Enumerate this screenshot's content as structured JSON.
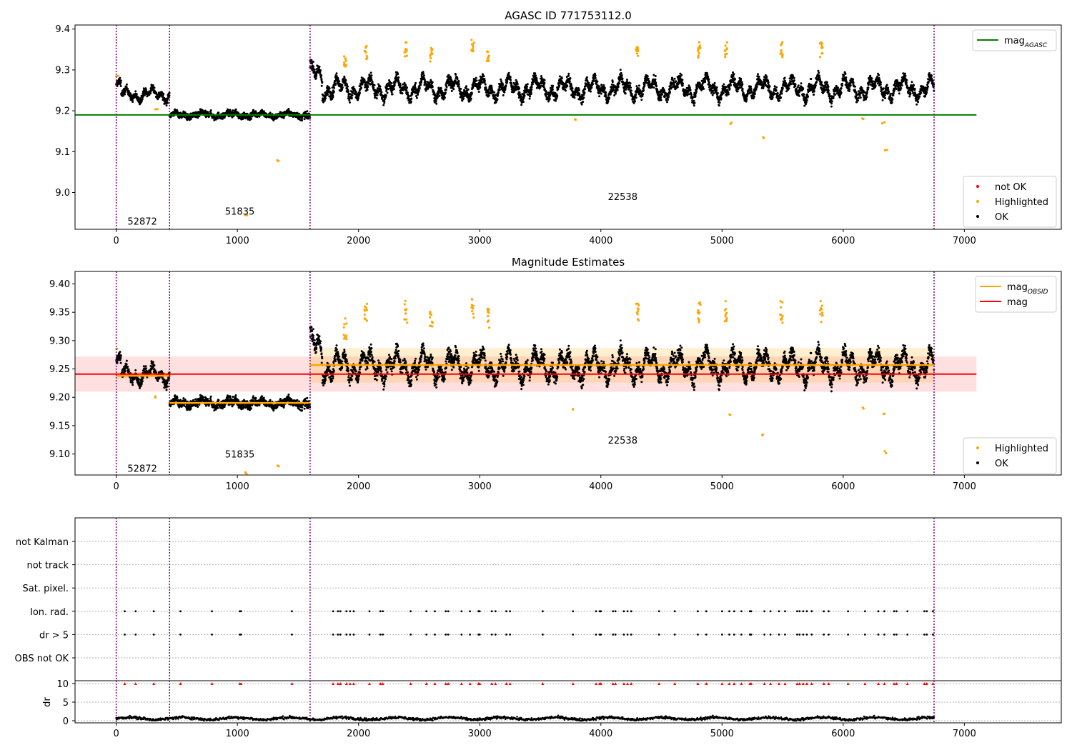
{
  "chart_data": [
    {
      "type": "scatter",
      "title": "AGASC ID 771753112.0",
      "xlim": [
        -340,
        7800
      ],
      "ylim": [
        8.91,
        9.41
      ],
      "xticks": [
        0,
        1000,
        2000,
        3000,
        4000,
        5000,
        6000,
        7000
      ],
      "yticks": [
        9.0,
        9.1,
        9.2,
        9.3,
        9.4
      ],
      "ytick_labels": [
        "9.0",
        "9.1",
        "9.2",
        "9.3",
        "9.4"
      ],
      "obsid_boundaries": [
        0,
        440,
        1600,
        6750
      ],
      "obsid_labels": [
        {
          "text": "52872",
          "x": 215,
          "y": 8.93
        },
        {
          "text": "51835",
          "x": 1020,
          "y": 8.955
        },
        {
          "text": "22538",
          "x": 4180,
          "y": 8.99
        }
      ],
      "mag_agasc": {
        "value": 9.19,
        "x": [
          -340,
          7100
        ],
        "color": "#008000"
      },
      "segments": [
        {
          "x": [
            0,
            440
          ],
          "base": 9.24,
          "amp": 0.015,
          "noise": 0.008
        },
        {
          "x": [
            440,
            1600
          ],
          "base": 9.19,
          "amp": 0.006,
          "noise": 0.007
        },
        {
          "x": [
            1600,
            6750
          ],
          "base": 9.255,
          "amp": 0.025,
          "noise": 0.012
        }
      ],
      "highlighted_points": [
        [
          5,
          9.285
        ],
        [
          330,
          9.205
        ],
        [
          1340,
          9.078
        ],
        [
          1070,
          8.945
        ],
        [
          1890,
          9.32
        ],
        [
          2060,
          9.345
        ],
        [
          2390,
          9.35
        ],
        [
          2600,
          9.34
        ],
        [
          2940,
          9.355
        ],
        [
          3070,
          9.34
        ],
        [
          3780,
          9.18
        ],
        [
          4300,
          9.35
        ],
        [
          4810,
          9.35
        ],
        [
          5030,
          9.35
        ],
        [
          5070,
          9.17
        ],
        [
          5340,
          9.135
        ],
        [
          5490,
          9.35
        ],
        [
          5820,
          9.35
        ],
        [
          6160,
          9.18
        ],
        [
          6330,
          9.17
        ],
        [
          6350,
          9.103
        ]
      ],
      "legend_upper": [
        {
          "label": "mag",
          "sub": "AGASC",
          "color": "#008000"
        }
      ],
      "legend_lower": [
        {
          "label": "not OK",
          "color": "#ff0000"
        },
        {
          "label": "Highlighted",
          "color": "#ffa500"
        },
        {
          "label": "OK",
          "color": "#000000"
        }
      ]
    },
    {
      "type": "scatter",
      "title": "Magnitude Estimates",
      "xlim": [
        -340,
        7800
      ],
      "ylim": [
        9.063,
        9.422
      ],
      "xticks": [
        0,
        1000,
        2000,
        3000,
        4000,
        5000,
        6000,
        7000
      ],
      "yticks": [
        9.1,
        9.15,
        9.2,
        9.25,
        9.3,
        9.35,
        9.4
      ],
      "ytick_labels": [
        "9.10",
        "9.15",
        "9.20",
        "9.25",
        "9.30",
        "9.35",
        "9.40"
      ],
      "obsid_boundaries": [
        0,
        440,
        1600,
        6750
      ],
      "obsid_labels": [
        {
          "text": "52872",
          "x": 215,
          "y": 9.075
        },
        {
          "text": "51835",
          "x": 1020,
          "y": 9.1
        },
        {
          "text": "22538",
          "x": 4180,
          "y": 9.125
        }
      ],
      "mag": {
        "value": 9.241,
        "band": [
          9.21,
          9.272
        ],
        "x": [
          -340,
          7100
        ],
        "color": "#ff0000"
      },
      "mag_obsid": [
        {
          "x": [
            0,
            440
          ],
          "value": 9.238,
          "band": [
            9.232,
            9.244
          ]
        },
        {
          "x": [
            440,
            1600
          ],
          "value": 9.19,
          "band": [
            9.185,
            9.195
          ]
        },
        {
          "x": [
            1600,
            6750
          ],
          "value": 9.257,
          "band": [
            9.226,
            9.287
          ]
        }
      ],
      "highlighted_points": [
        [
          5,
          9.285
        ],
        [
          330,
          9.2
        ],
        [
          1340,
          9.078
        ],
        [
          1070,
          9.066
        ],
        [
          1890,
          9.32
        ],
        [
          2060,
          9.345
        ],
        [
          2390,
          9.35
        ],
        [
          2600,
          9.34
        ],
        [
          2940,
          9.355
        ],
        [
          3070,
          9.34
        ],
        [
          3780,
          9.18
        ],
        [
          4300,
          9.35
        ],
        [
          4810,
          9.35
        ],
        [
          5030,
          9.35
        ],
        [
          5070,
          9.17
        ],
        [
          5340,
          9.135
        ],
        [
          5490,
          9.35
        ],
        [
          5820,
          9.35
        ],
        [
          6160,
          9.18
        ],
        [
          6330,
          9.17
        ],
        [
          6350,
          9.103
        ]
      ],
      "legend_upper": [
        {
          "label": "mag",
          "sub": "OBSID",
          "color": "#ffa500"
        },
        {
          "label": "mag",
          "sub": "",
          "color": "#ff0000"
        }
      ],
      "legend_lower": [
        {
          "label": "Highlighted",
          "color": "#ffa500"
        },
        {
          "label": "OK",
          "color": "#000000"
        }
      ]
    },
    {
      "type": "scatter",
      "title": "",
      "xlim": [
        -340,
        7800
      ],
      "xticks": [
        0,
        1000,
        2000,
        3000,
        4000,
        5000,
        6000,
        7000
      ],
      "obsid_boundaries": [
        0,
        440,
        1600,
        6750
      ],
      "flag_rows": [
        "not Kalman",
        "not track",
        "Sat. pixel.",
        "Ion. rad.",
        "dr > 5",
        "OBS not OK"
      ],
      "flag_times": [
        70,
        160,
        310,
        530,
        790,
        1020,
        1030,
        1450,
        1790,
        1830,
        1850,
        1900,
        1930,
        1960,
        2090,
        2180,
        2200,
        2430,
        2560,
        2630,
        2720,
        2740,
        2850,
        2920,
        2990,
        3000,
        3100,
        3130,
        3220,
        3250,
        3520,
        3770,
        3960,
        3990,
        4000,
        4100,
        4120,
        4190,
        4220,
        4250,
        4480,
        4610,
        4800,
        4870,
        5000,
        5060,
        5100,
        5160,
        5230,
        5240,
        5350,
        5400,
        5470,
        5520,
        5620,
        5640,
        5670,
        5700,
        5740,
        5840,
        5880,
        6040,
        6180,
        6290,
        6340,
        6420,
        6440,
        6530,
        6670,
        6690,
        6740
      ],
      "dr": {
        "ylabel": "dr",
        "yticks": [
          0,
          5,
          10
        ],
        "ylim": [
          -0.5,
          10.5
        ],
        "level": 0.6,
        "clip_value": 10
      }
    }
  ],
  "colors": {
    "ok": "#000000",
    "highlighted": "#ffa500",
    "not_ok": "#ff0000",
    "obsid_line": "#800080",
    "mag_agasc": "#008000",
    "mag": "#ff0000",
    "mag_obsid": "#ffa500"
  }
}
